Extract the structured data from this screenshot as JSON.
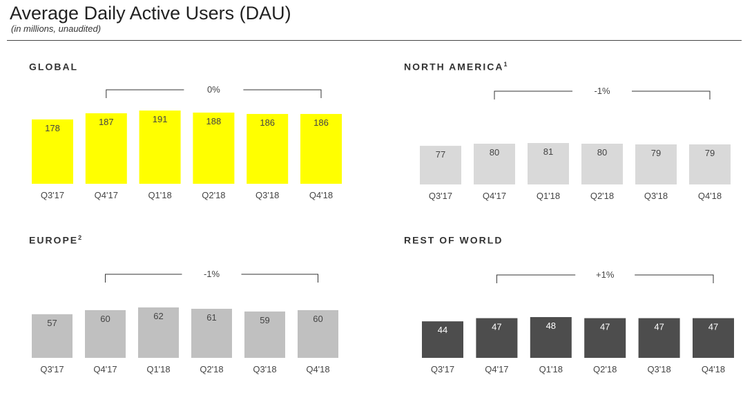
{
  "header": {
    "title": "Average Daily Active Users (DAU)",
    "subtitle": "(in millions, unaudited)"
  },
  "colors": {
    "global": "#ffff00",
    "north_america": "#d9d9d9",
    "europe": "#c0c0c0",
    "rest_of_world": "#4d4d4d",
    "label_dark": "#444444",
    "label_light": "#ffffff"
  },
  "chart_data": [
    {
      "type": "bar",
      "title": "GLOBAL",
      "title_sup": "",
      "categories": [
        "Q3'17",
        "Q4'17",
        "Q1'18",
        "Q2'18",
        "Q3'18",
        "Q4'18"
      ],
      "values": [
        178,
        187,
        191,
        188,
        186,
        186
      ],
      "change_label": "0%",
      "change_from": "Q4'17",
      "change_to": "Q4'18"
    },
    {
      "type": "bar",
      "title": "NORTH AMERICA",
      "title_sup": "1",
      "categories": [
        "Q3'17",
        "Q4'17",
        "Q1'18",
        "Q2'18",
        "Q3'18",
        "Q4'18"
      ],
      "values": [
        77,
        80,
        81,
        80,
        79,
        79
      ],
      "change_label": "-1%",
      "change_from": "Q4'17",
      "change_to": "Q4'18"
    },
    {
      "type": "bar",
      "title": "EUROPE",
      "title_sup": "2",
      "categories": [
        "Q3'17",
        "Q4'17",
        "Q1'18",
        "Q2'18",
        "Q3'18",
        "Q4'18"
      ],
      "values": [
        57,
        60,
        62,
        61,
        59,
        60
      ],
      "change_label": "-1%",
      "change_from": "Q4'17",
      "change_to": "Q4'18"
    },
    {
      "type": "bar",
      "title": "REST OF WORLD",
      "title_sup": "",
      "categories": [
        "Q3'17",
        "Q4'17",
        "Q1'18",
        "Q2'18",
        "Q3'18",
        "Q4'18"
      ],
      "values": [
        44,
        47,
        48,
        47,
        47,
        47
      ],
      "change_label": "+1%",
      "change_from": "Q4'17",
      "change_to": "Q4'18"
    }
  ]
}
